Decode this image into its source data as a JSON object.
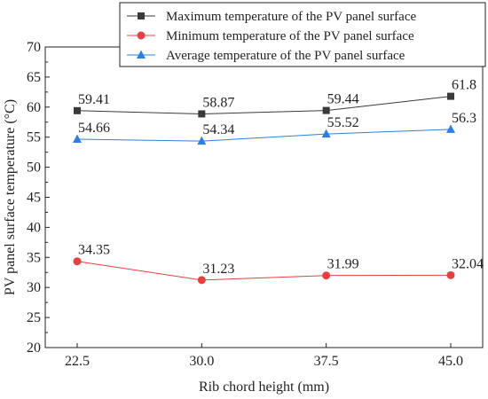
{
  "chart_data": {
    "type": "line",
    "xlabel": "Rib chord height (mm)",
    "ylabel": "PV panel surface temperature (°C)",
    "categories": [
      "22.5",
      "30.0",
      "37.5",
      "45.0"
    ],
    "x": [
      22.5,
      30.0,
      37.5,
      45.0
    ],
    "ylim": [
      20,
      70
    ],
    "yticks": [
      "20",
      "25",
      "30",
      "35",
      "40",
      "45",
      "50",
      "55",
      "60",
      "65",
      "70"
    ],
    "grid": false,
    "legend_position": "top-right",
    "series": [
      {
        "name": "Maximum temperature of the PV panel surface",
        "values": [
          59.41,
          58.87,
          59.44,
          61.8
        ],
        "labels": [
          "59.41",
          "58.87",
          "59.44",
          "61.8"
        ],
        "color": "#3a3a3a",
        "marker": "square"
      },
      {
        "name": "Minimum temperature of the PV panel surface",
        "values": [
          34.35,
          31.23,
          31.99,
          32.04
        ],
        "labels": [
          "34.35",
          "31.23",
          "31.99",
          "32.04"
        ],
        "color": "#e84040",
        "marker": "circle"
      },
      {
        "name": "Average temperature of the PV panel surface",
        "values": [
          54.66,
          54.34,
          55.52,
          56.3
        ],
        "labels": [
          "54.66",
          "54.34",
          "55.52",
          "56.3"
        ],
        "color": "#2e7fe0",
        "marker": "triangle"
      }
    ]
  }
}
